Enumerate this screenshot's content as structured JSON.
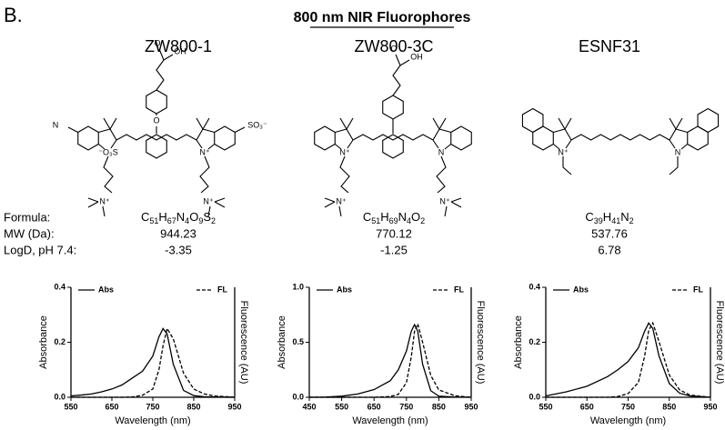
{
  "panel_label": "B.",
  "title": "800 nm NIR Fluorophores",
  "property_labels": [
    "Formula:",
    "MW (Da):",
    "LogD, pH 7.4:"
  ],
  "compounds": [
    {
      "name": "ZW800-1",
      "formula": "C51H67N4O9S2",
      "mw": 944.23,
      "logd": -3.35,
      "atom_labels": [
        "OH",
        "O",
        "O",
        "⁻O₃S",
        "N⁺",
        "N",
        "SO₃⁻",
        "N⁺",
        "N⁺"
      ]
    },
    {
      "name": "ZW800-3C",
      "formula": "C51H69N4O2",
      "mw": 770.12,
      "logd": -1.25,
      "atom_labels": [
        "OH",
        "O",
        "N⁺",
        "N",
        "N⁺",
        "N⁺"
      ]
    },
    {
      "name": "ESNF31",
      "formula": "C39H41N2",
      "mw": 537.76,
      "logd": 6.78,
      "atom_labels": [
        "N⁺",
        "N"
      ]
    }
  ],
  "chart_data": [
    {
      "type": "line",
      "xlabel": "Wavelength (nm)",
      "ylabel": "Absorbance",
      "y2label": "Fluorescence (AU)",
      "x": [
        550,
        575,
        600,
        625,
        650,
        675,
        700,
        725,
        750,
        765,
        775,
        785,
        800,
        825,
        850,
        875,
        900,
        950
      ],
      "series": [
        {
          "name": "Abs",
          "color": "#000000",
          "line_style": "solid",
          "values": [
            0.005,
            0.008,
            0.012,
            0.02,
            0.03,
            0.045,
            0.07,
            0.095,
            0.15,
            0.22,
            0.25,
            0.23,
            0.12,
            0.025,
            0.006,
            0.002,
            0.001,
            0
          ]
        },
        {
          "name": "FL",
          "color": "#000000",
          "line_style": "dashed",
          "axis": "y2",
          "values": [
            0,
            0,
            0,
            0,
            0,
            0,
            0.005,
            0.03,
            0.12,
            0.4,
            0.75,
            1.0,
            0.85,
            0.35,
            0.12,
            0.05,
            0.02,
            0
          ]
        }
      ],
      "xlim": [
        550,
        950
      ],
      "xticks": [
        550,
        650,
        750,
        850,
        950
      ],
      "ylim": [
        0,
        0.4
      ],
      "yticks": [
        {
          "value": 0,
          "label": "0.0"
        },
        0.2,
        0.4
      ],
      "y2lim": [
        0,
        1.6
      ],
      "legend": "top"
    },
    {
      "type": "line",
      "xlabel": "Wavelength (nm)",
      "ylabel": "Absorbance",
      "y2label": "Fluorescence (AU)",
      "x": [
        450,
        500,
        550,
        600,
        650,
        700,
        725,
        750,
        765,
        775,
        785,
        800,
        825,
        850,
        900,
        950
      ],
      "series": [
        {
          "name": "Abs",
          "color": "#000000",
          "line_style": "solid",
          "values": [
            0,
            0.002,
            0.01,
            0.03,
            0.07,
            0.15,
            0.25,
            0.42,
            0.6,
            0.66,
            0.6,
            0.3,
            0.06,
            0.01,
            0.002,
            0
          ]
        },
        {
          "name": "FL",
          "color": "#000000",
          "line_style": "dashed",
          "axis": "y2",
          "values": [
            0,
            0,
            0,
            0,
            0,
            0.01,
            0.04,
            0.2,
            0.55,
            0.9,
            1.0,
            0.75,
            0.3,
            0.1,
            0.02,
            0
          ]
        }
      ],
      "xlim": [
        450,
        950
      ],
      "xticks": [
        450,
        550,
        650,
        750,
        850,
        950
      ],
      "ylim": [
        0,
        1.0
      ],
      "yticks": [
        {
          "value": 0,
          "label": "0.0"
        },
        0.5,
        {
          "value": 1,
          "label": "1.0"
        }
      ],
      "y2lim": [
        0,
        1.5
      ],
      "legend": "top"
    },
    {
      "type": "line",
      "xlabel": "Wavelength (nm)",
      "ylabel": "Absorbance",
      "y2label": "Fluorescence (AU)",
      "x": [
        550,
        600,
        650,
        700,
        725,
        750,
        775,
        790,
        800,
        810,
        825,
        850,
        875,
        900,
        950
      ],
      "series": [
        {
          "name": "Abs",
          "color": "#000000",
          "line_style": "solid",
          "values": [
            0.005,
            0.02,
            0.04,
            0.075,
            0.1,
            0.13,
            0.18,
            0.24,
            0.27,
            0.25,
            0.15,
            0.05,
            0.015,
            0.005,
            0
          ]
        },
        {
          "name": "FL",
          "color": "#000000",
          "line_style": "dashed",
          "axis": "y2",
          "values": [
            0,
            0,
            0,
            0,
            0.01,
            0.05,
            0.2,
            0.55,
            0.9,
            1.0,
            0.75,
            0.3,
            0.1,
            0.03,
            0
          ]
        }
      ],
      "xlim": [
        550,
        950
      ],
      "xticks": [
        550,
        650,
        750,
        850,
        950
      ],
      "ylim": [
        0,
        0.4
      ],
      "yticks": [
        {
          "value": 0,
          "label": "0.0"
        },
        0.2,
        0.4
      ],
      "y2lim": [
        0,
        1.48
      ],
      "legend": "top"
    }
  ]
}
